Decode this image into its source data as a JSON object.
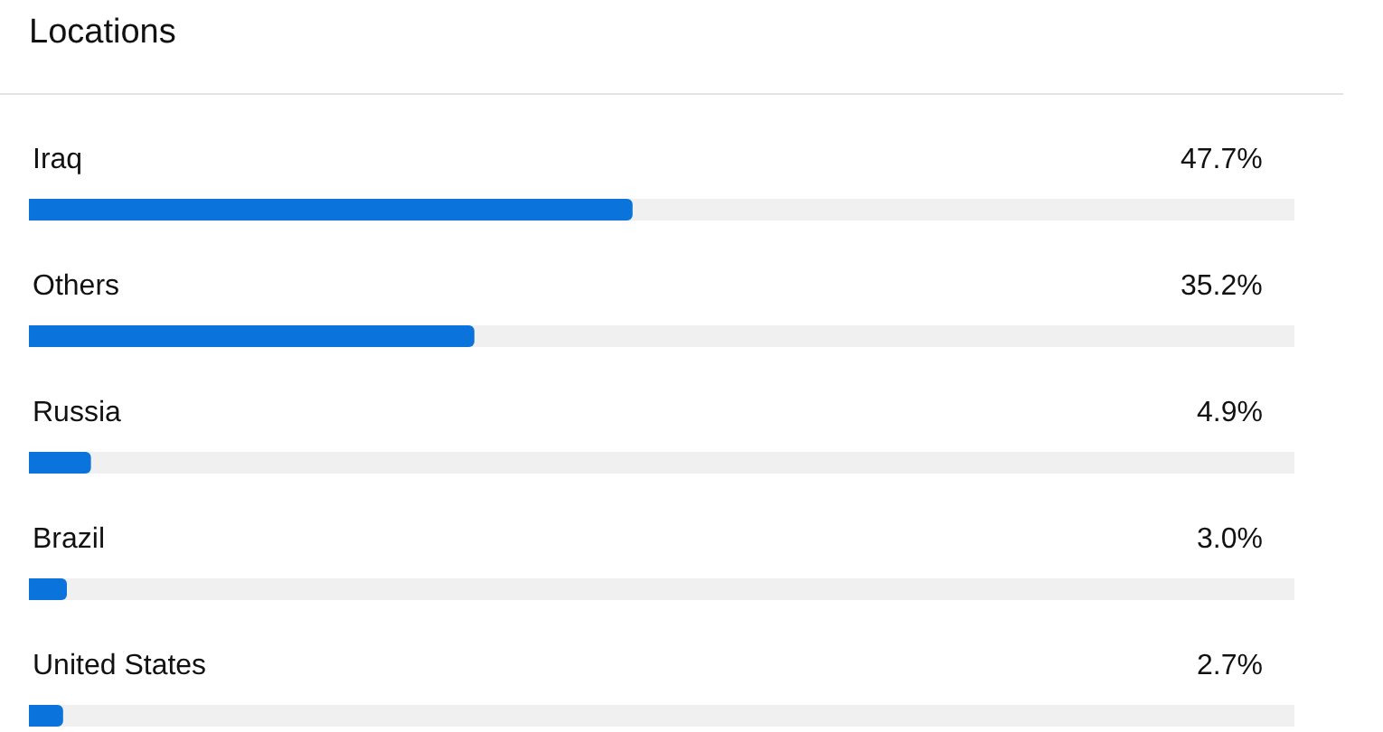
{
  "chart_data": {
    "type": "bar",
    "orientation": "horizontal",
    "title": "Locations",
    "categories": [
      "Iraq",
      "Others",
      "Russia",
      "Brazil",
      "United States"
    ],
    "values": [
      47.7,
      35.2,
      4.9,
      3.0,
      2.7
    ],
    "value_labels": [
      "47.7%",
      "35.2%",
      "4.9%",
      "3.0%",
      "2.7%"
    ],
    "color": "#0a73dc",
    "xlim": [
      0,
      100
    ],
    "tick_labels": "y"
  }
}
